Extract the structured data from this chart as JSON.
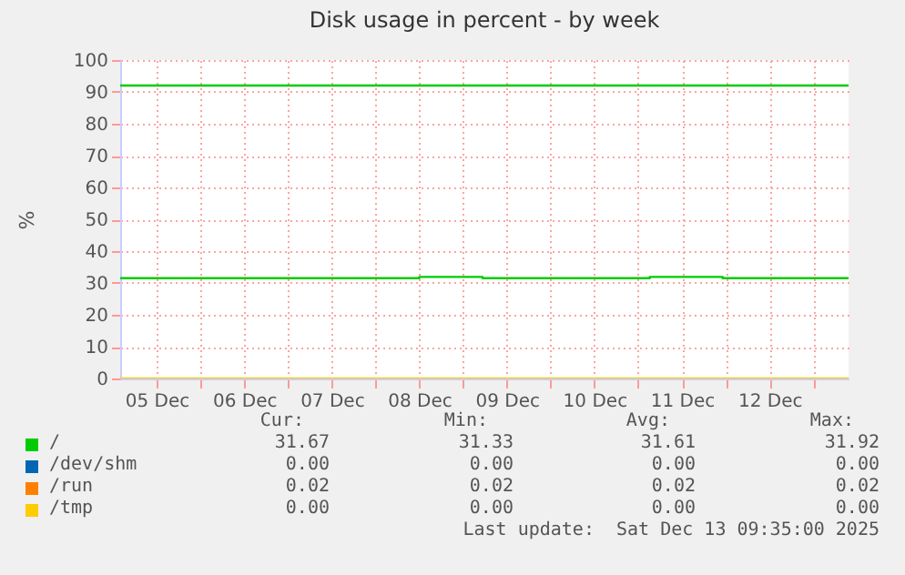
{
  "chart_data": {
    "type": "step",
    "title": "Disk usage in percent - by week",
    "ylabel": "%",
    "xlim": [
      "2025-12-05T02:00",
      "2025-12-13T09:40"
    ],
    "xticks": [
      {
        "value": "2025-12-05T12:00",
        "label": "05 Dec"
      },
      {
        "value": "2025-12-06T00:00",
        "label": null
      },
      {
        "value": "2025-12-06T12:00",
        "label": "06 Dec"
      },
      {
        "value": "2025-12-07T00:00",
        "label": null
      },
      {
        "value": "2025-12-07T12:00",
        "label": "07 Dec"
      },
      {
        "value": "2025-12-08T00:00",
        "label": null
      },
      {
        "value": "2025-12-08T12:00",
        "label": "08 Dec"
      },
      {
        "value": "2025-12-09T00:00",
        "label": null
      },
      {
        "value": "2025-12-09T12:00",
        "label": "09 Dec"
      },
      {
        "value": "2025-12-10T00:00",
        "label": null
      },
      {
        "value": "2025-12-10T12:00",
        "label": "10 Dec"
      },
      {
        "value": "2025-12-11T00:00",
        "label": null
      },
      {
        "value": "2025-12-11T12:00",
        "label": "11 Dec"
      },
      {
        "value": "2025-12-12T00:00",
        "label": null
      },
      {
        "value": "2025-12-12T12:00",
        "label": "12 Dec"
      },
      {
        "value": "2025-12-13T00:00",
        "label": null
      }
    ],
    "ylim": [
      0,
      100
    ],
    "yticks": [
      0,
      10,
      20,
      30,
      40,
      50,
      60,
      70,
      80,
      90,
      100
    ],
    "grid": true,
    "legend": "bottom",
    "series": [
      {
        "name": "/",
        "color": "#00cc00",
        "x": [
          "2025-12-05T02:00",
          "2025-12-08T12:00",
          "2025-12-09T05:20",
          "2025-12-11T03:10",
          "2025-12-11T23:10",
          "2025-12-13T09:40"
        ],
        "values": [
          31.5,
          31.9,
          31.5,
          31.9,
          31.5,
          31.5
        ]
      },
      {
        "name": "/dev/shm",
        "color": "#0066b3"
      },
      {
        "name": "/run",
        "color": "#ff8000"
      },
      {
        "name": "/tmp",
        "color": "#ffcc00",
        "x": [
          "2025-12-05T02:00",
          "2025-12-13T09:40"
        ],
        "values": [
          0,
          0
        ]
      }
    ],
    "ref_lines": [
      {
        "axis": "y",
        "value": 92,
        "color": "#00cc00"
      }
    ],
    "annotations": [
      "Cur:",
      "Min:",
      "Avg:",
      "Max:",
      "31.67",
      "31.33",
      "31.61",
      "31.92",
      "0.00",
      "0.00",
      "0.00",
      "0.00",
      "0.02",
      "0.02",
      "0.02",
      "0.02",
      "0.00",
      "0.00",
      "0.00",
      "0.00",
      "Last update:  Sat Dec 13 09:35:00 2025"
    ]
  }
}
